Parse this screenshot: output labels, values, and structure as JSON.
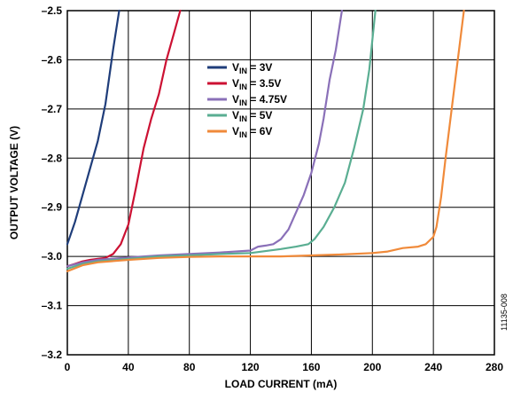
{
  "figure_id": "11135-008",
  "chart_data": {
    "type": "line",
    "xlabel": "LOAD CURRENT (mA)",
    "ylabel": "OUTPUT VOLTAGE (V)",
    "xlim": [
      0,
      280
    ],
    "ylim": [
      -3.2,
      -2.5
    ],
    "x_ticks": [
      0,
      40,
      80,
      120,
      160,
      200,
      240,
      280
    ],
    "y_ticks": [
      -2.5,
      -2.6,
      -2.7,
      -2.8,
      -2.9,
      -3.0,
      -3.1,
      -3.2
    ],
    "x_tick_labels": [
      "0",
      "40",
      "80",
      "120",
      "160",
      "200",
      "240",
      "280"
    ],
    "y_tick_labels": [
      "–2.5",
      "–2.6",
      "–2.7",
      "–2.8",
      "–2.9",
      "–3.0",
      "–3.1",
      "–3.2"
    ],
    "grid": true,
    "legend_position": "top-center",
    "series": [
      {
        "name": "VIN = 3V",
        "label_main": "V",
        "label_sub": "IN",
        "label_rest": " = 3V",
        "color": "#1f3d7a",
        "points": [
          [
            0,
            -2.975
          ],
          [
            5,
            -2.93
          ],
          [
            10,
            -2.875
          ],
          [
            15,
            -2.82
          ],
          [
            20,
            -2.765
          ],
          [
            25,
            -2.69
          ],
          [
            30,
            -2.58
          ],
          [
            34,
            -2.5
          ]
        ]
      },
      {
        "name": "VIN = 3.5V",
        "label_main": "V",
        "label_sub": "IN",
        "label_rest": " = 3.5V",
        "color": "#cc1133",
        "points": [
          [
            0,
            -3.02
          ],
          [
            5,
            -3.015
          ],
          [
            10,
            -3.01
          ],
          [
            15,
            -3.007
          ],
          [
            20,
            -3.005
          ],
          [
            25,
            -3.003
          ],
          [
            30,
            -2.995
          ],
          [
            35,
            -2.975
          ],
          [
            40,
            -2.935
          ],
          [
            45,
            -2.86
          ],
          [
            50,
            -2.78
          ],
          [
            55,
            -2.72
          ],
          [
            60,
            -2.67
          ],
          [
            65,
            -2.6
          ],
          [
            70,
            -2.545
          ],
          [
            74,
            -2.5
          ]
        ]
      },
      {
        "name": "VIN = 4.75V",
        "label_main": "V",
        "label_sub": "IN",
        "label_rest": " = 4.75V",
        "color": "#8a70b8",
        "points": [
          [
            0,
            -3.02
          ],
          [
            10,
            -3.012
          ],
          [
            20,
            -3.007
          ],
          [
            40,
            -3.002
          ],
          [
            60,
            -2.998
          ],
          [
            80,
            -2.995
          ],
          [
            100,
            -2.992
          ],
          [
            120,
            -2.988
          ],
          [
            125,
            -2.98
          ],
          [
            130,
            -2.978
          ],
          [
            135,
            -2.975
          ],
          [
            140,
            -2.965
          ],
          [
            145,
            -2.945
          ],
          [
            150,
            -2.91
          ],
          [
            155,
            -2.875
          ],
          [
            160,
            -2.83
          ],
          [
            165,
            -2.77
          ],
          [
            168,
            -2.72
          ],
          [
            172,
            -2.64
          ],
          [
            176,
            -2.58
          ],
          [
            180,
            -2.5
          ]
        ]
      },
      {
        "name": "VIN = 5V",
        "label_main": "V",
        "label_sub": "IN",
        "label_rest": " = 5V",
        "color": "#5aae92",
        "points": [
          [
            0,
            -3.025
          ],
          [
            10,
            -3.015
          ],
          [
            20,
            -3.01
          ],
          [
            40,
            -3.005
          ],
          [
            60,
            -3.0
          ],
          [
            80,
            -2.998
          ],
          [
            100,
            -2.995
          ],
          [
            120,
            -2.993
          ],
          [
            140,
            -2.985
          ],
          [
            150,
            -2.98
          ],
          [
            158,
            -2.975
          ],
          [
            162,
            -2.965
          ],
          [
            168,
            -2.94
          ],
          [
            175,
            -2.9
          ],
          [
            182,
            -2.85
          ],
          [
            188,
            -2.78
          ],
          [
            194,
            -2.7
          ],
          [
            198,
            -2.62
          ],
          [
            202,
            -2.5
          ]
        ]
      },
      {
        "name": "VIN = 6V",
        "label_main": "V",
        "label_sub": "IN",
        "label_rest": " = 6V",
        "color": "#f08a3a",
        "points": [
          [
            0,
            -3.03
          ],
          [
            10,
            -3.018
          ],
          [
            20,
            -3.012
          ],
          [
            40,
            -3.007
          ],
          [
            60,
            -3.003
          ],
          [
            80,
            -3.001
          ],
          [
            100,
            -3.0
          ],
          [
            120,
            -3.0
          ],
          [
            140,
            -3.0
          ],
          [
            160,
            -2.998
          ],
          [
            180,
            -2.996
          ],
          [
            200,
            -2.993
          ],
          [
            210,
            -2.99
          ],
          [
            220,
            -2.983
          ],
          [
            230,
            -2.98
          ],
          [
            235,
            -2.975
          ],
          [
            240,
            -2.96
          ],
          [
            242,
            -2.94
          ],
          [
            245,
            -2.88
          ],
          [
            248,
            -2.8
          ],
          [
            252,
            -2.7
          ],
          [
            256,
            -2.6
          ],
          [
            260,
            -2.5
          ]
        ]
      }
    ]
  }
}
